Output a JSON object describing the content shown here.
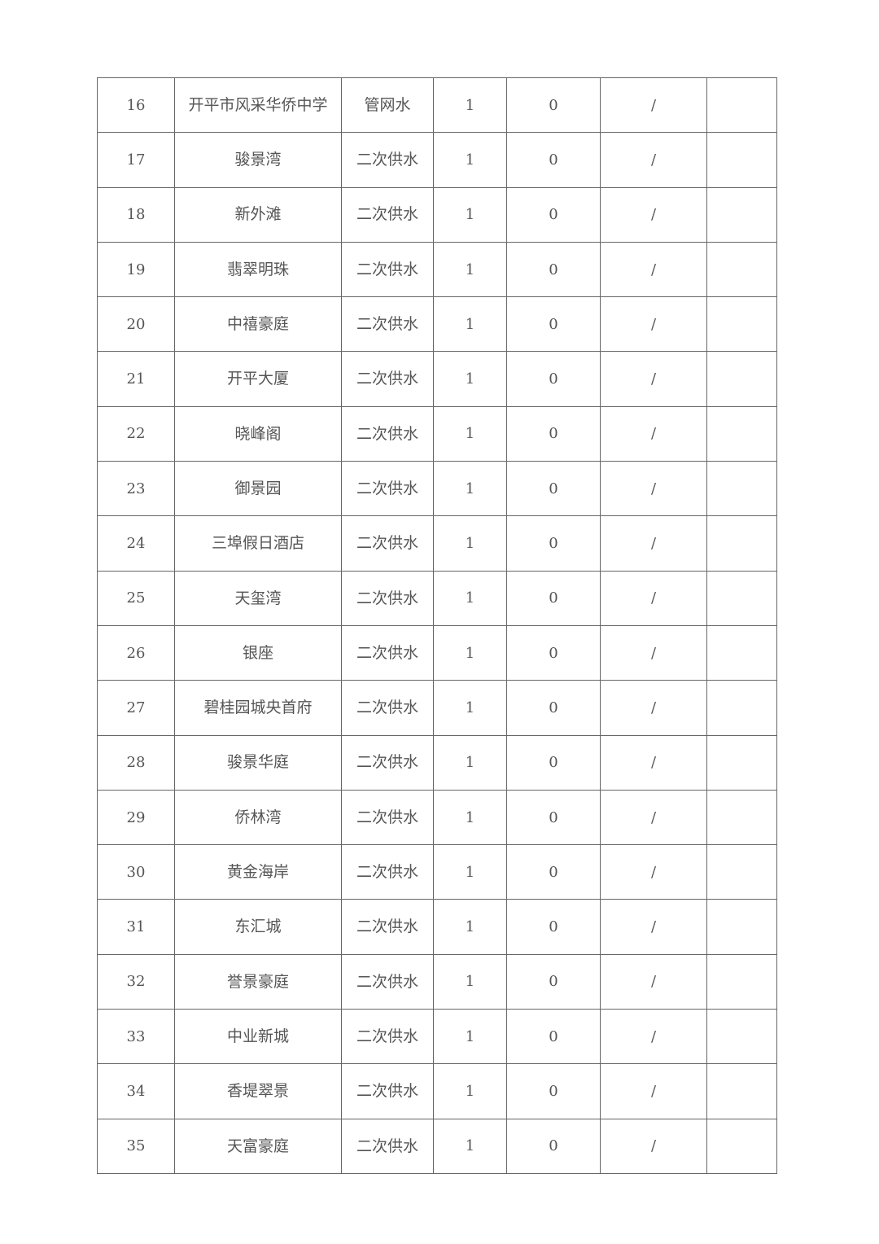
{
  "table": {
    "rows": [
      {
        "no": "16",
        "name": "开平市风采华侨中学",
        "type": "管网水",
        "count": "1",
        "fail": "0",
        "rate": "/",
        "note": ""
      },
      {
        "no": "17",
        "name": "骏景湾",
        "type": "二次供水",
        "count": "1",
        "fail": "0",
        "rate": "/",
        "note": ""
      },
      {
        "no": "18",
        "name": "新外滩",
        "type": "二次供水",
        "count": "1",
        "fail": "0",
        "rate": "/",
        "note": ""
      },
      {
        "no": "19",
        "name": "翡翠明珠",
        "type": "二次供水",
        "count": "1",
        "fail": "0",
        "rate": "/",
        "note": ""
      },
      {
        "no": "20",
        "name": "中禧豪庭",
        "type": "二次供水",
        "count": "1",
        "fail": "0",
        "rate": "/",
        "note": ""
      },
      {
        "no": "21",
        "name": "开平大厦",
        "type": "二次供水",
        "count": "1",
        "fail": "0",
        "rate": "/",
        "note": ""
      },
      {
        "no": "22",
        "name": "晓峰阁",
        "type": "二次供水",
        "count": "1",
        "fail": "0",
        "rate": "/",
        "note": ""
      },
      {
        "no": "23",
        "name": "御景园",
        "type": "二次供水",
        "count": "1",
        "fail": "0",
        "rate": "/",
        "note": ""
      },
      {
        "no": "24",
        "name": "三埠假日酒店",
        "type": "二次供水",
        "count": "1",
        "fail": "0",
        "rate": "/",
        "note": ""
      },
      {
        "no": "25",
        "name": "天玺湾",
        "type": "二次供水",
        "count": "1",
        "fail": "0",
        "rate": "/",
        "note": ""
      },
      {
        "no": "26",
        "name": "银座",
        "type": "二次供水",
        "count": "1",
        "fail": "0",
        "rate": "/",
        "note": ""
      },
      {
        "no": "27",
        "name": "碧桂园城央首府",
        "type": "二次供水",
        "count": "1",
        "fail": "0",
        "rate": "/",
        "note": ""
      },
      {
        "no": "28",
        "name": "骏景华庭",
        "type": "二次供水",
        "count": "1",
        "fail": "0",
        "rate": "/",
        "note": ""
      },
      {
        "no": "29",
        "name": "侨林湾",
        "type": "二次供水",
        "count": "1",
        "fail": "0",
        "rate": "/",
        "note": ""
      },
      {
        "no": "30",
        "name": "黄金海岸",
        "type": "二次供水",
        "count": "1",
        "fail": "0",
        "rate": "/",
        "note": ""
      },
      {
        "no": "31",
        "name": "东汇城",
        "type": "二次供水",
        "count": "1",
        "fail": "0",
        "rate": "/",
        "note": ""
      },
      {
        "no": "32",
        "name": "誉景豪庭",
        "type": "二次供水",
        "count": "1",
        "fail": "0",
        "rate": "/",
        "note": ""
      },
      {
        "no": "33",
        "name": "中业新城",
        "type": "二次供水",
        "count": "1",
        "fail": "0",
        "rate": "/",
        "note": ""
      },
      {
        "no": "34",
        "name": "香堤翠景",
        "type": "二次供水",
        "count": "1",
        "fail": "0",
        "rate": "/",
        "note": ""
      },
      {
        "no": "35",
        "name": "天富豪庭",
        "type": "二次供水",
        "count": "1",
        "fail": "0",
        "rate": "/",
        "note": ""
      }
    ]
  }
}
